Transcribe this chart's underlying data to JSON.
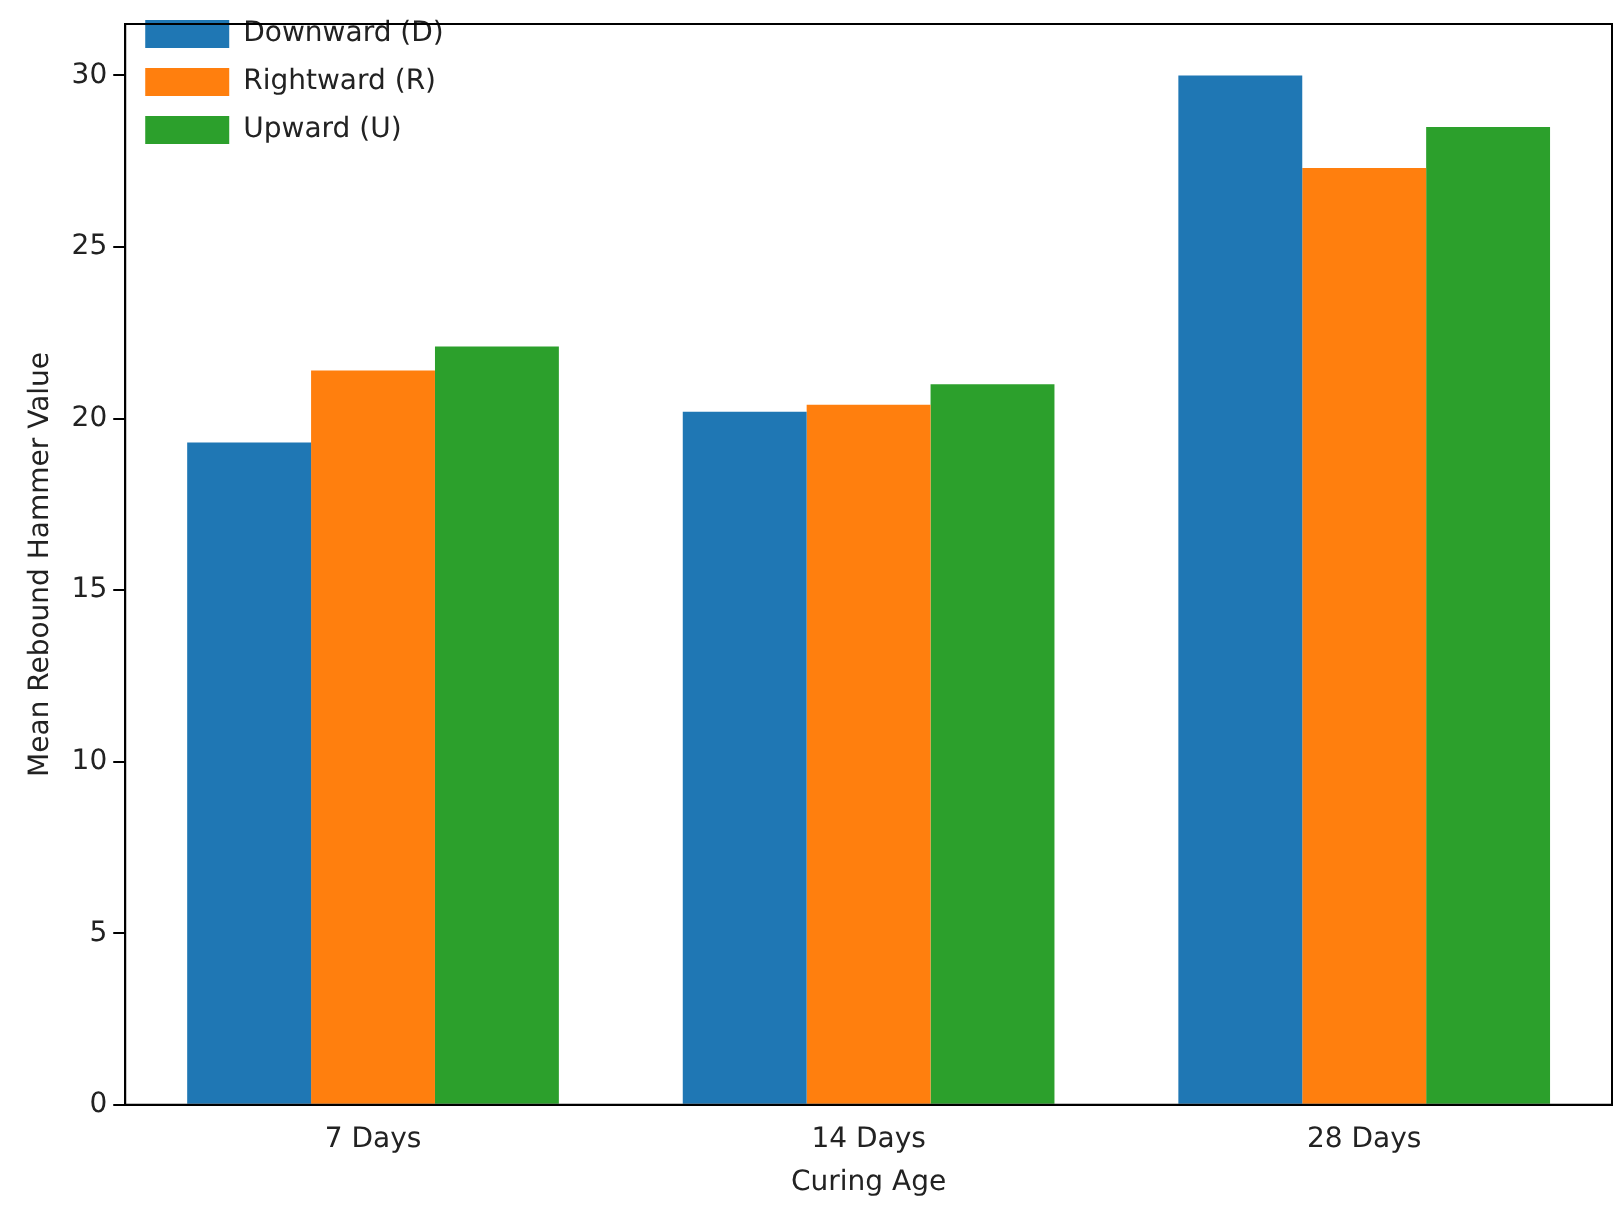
{
  "chart_data": {
    "type": "bar",
    "xlabel": "Curing Age",
    "ylabel": "Mean Rebound Hammer Value",
    "categories": [
      "7 Days",
      "14 Days",
      "28 Days"
    ],
    "series": [
      {
        "name": "Downward (D)",
        "color": "#1f77b4",
        "values": [
          19.3,
          20.2,
          30.0
        ]
      },
      {
        "name": "Rightward (R)",
        "color": "#ff7f0e",
        "values": [
          21.4,
          20.4,
          27.3
        ]
      },
      {
        "name": "Upward (U)",
        "color": "#2ca02c",
        "values": [
          22.1,
          21.0,
          28.5
        ]
      }
    ],
    "ylim": [
      0,
      31.5
    ],
    "yticks": [
      0,
      5,
      10,
      15,
      20,
      25,
      30
    ],
    "grid": false,
    "legend": "top left"
  }
}
